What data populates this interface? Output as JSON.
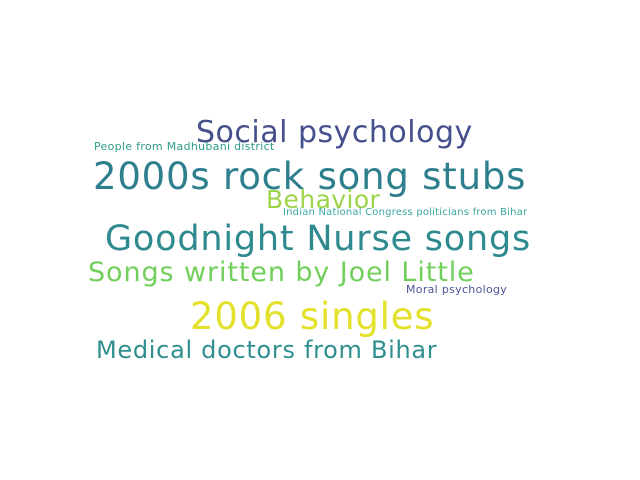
{
  "words": [
    {
      "text": "Social psychology",
      "color": "#46508c"
    },
    {
      "text": "People from Madhubani district",
      "color": "#2f9b8a"
    },
    {
      "text": "2000s rock song stubs",
      "color": "#2e7f8d"
    },
    {
      "text": "Behavior",
      "color": "#9dd44a"
    },
    {
      "text": "Indian National Congress politicians from Bihar",
      "color": "#3aa6a0"
    },
    {
      "text": "Goodnight Nurse songs",
      "color": "#2e8a8e"
    },
    {
      "text": "Songs written by Joel Little",
      "color": "#72cf5b"
    },
    {
      "text": "Moral psychology",
      "color": "#4d5592"
    },
    {
      "text": "2006 singles",
      "color": "#e4e12a"
    },
    {
      "text": "Medical doctors from Bihar",
      "color": "#2f8f8e"
    }
  ]
}
